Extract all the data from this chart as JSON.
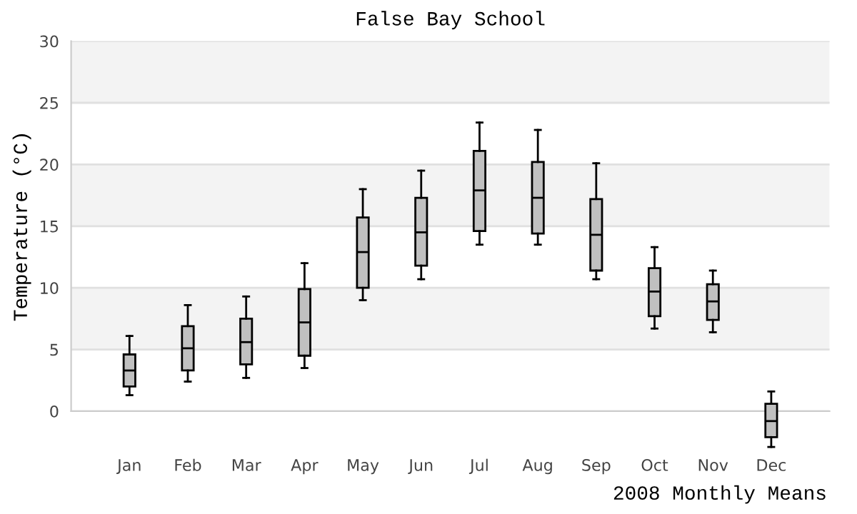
{
  "chart_data": {
    "type": "box",
    "title": "False Bay School",
    "xlabel": "2008 Monthly Means",
    "ylabel": "Temperature (°C)",
    "categories": [
      "Jan",
      "Feb",
      "Mar",
      "Apr",
      "May",
      "Jun",
      "Jul",
      "Aug",
      "Sep",
      "Oct",
      "Nov",
      "Dec"
    ],
    "color": "#c0c0c0",
    "boxes": [
      {
        "low": 1.3,
        "q1": 2.0,
        "median": 3.3,
        "q3": 4.6,
        "high": 6.1
      },
      {
        "low": 2.4,
        "q1": 3.3,
        "median": 5.1,
        "q3": 6.9,
        "high": 8.6
      },
      {
        "low": 2.7,
        "q1": 3.8,
        "median": 5.6,
        "q3": 7.5,
        "high": 9.3
      },
      {
        "low": 3.5,
        "q1": 4.5,
        "median": 7.2,
        "q3": 9.9,
        "high": 12.0
      },
      {
        "low": 9.0,
        "q1": 10.0,
        "median": 12.9,
        "q3": 15.7,
        "high": 18.0
      },
      {
        "low": 10.7,
        "q1": 11.8,
        "median": 14.5,
        "q3": 17.3,
        "high": 19.5
      },
      {
        "low": 13.5,
        "q1": 14.6,
        "median": 17.9,
        "q3": 21.1,
        "high": 23.4
      },
      {
        "low": 13.5,
        "q1": 14.4,
        "median": 17.3,
        "q3": 20.2,
        "high": 22.8
      },
      {
        "low": 10.7,
        "q1": 11.4,
        "median": 14.3,
        "q3": 17.2,
        "high": 20.1
      },
      {
        "low": 6.7,
        "q1": 7.7,
        "median": 9.7,
        "q3": 11.6,
        "high": 13.3
      },
      {
        "low": 6.4,
        "q1": 7.4,
        "median": 8.9,
        "q3": 10.3,
        "high": 11.4
      },
      {
        "low": -2.9,
        "q1": -2.1,
        "median": -0.8,
        "q3": 0.6,
        "high": 1.6
      }
    ],
    "ylim": [
      0,
      30
    ],
    "yticks": [
      0,
      5,
      10,
      15,
      20,
      25,
      30
    ],
    "grid": "y"
  }
}
